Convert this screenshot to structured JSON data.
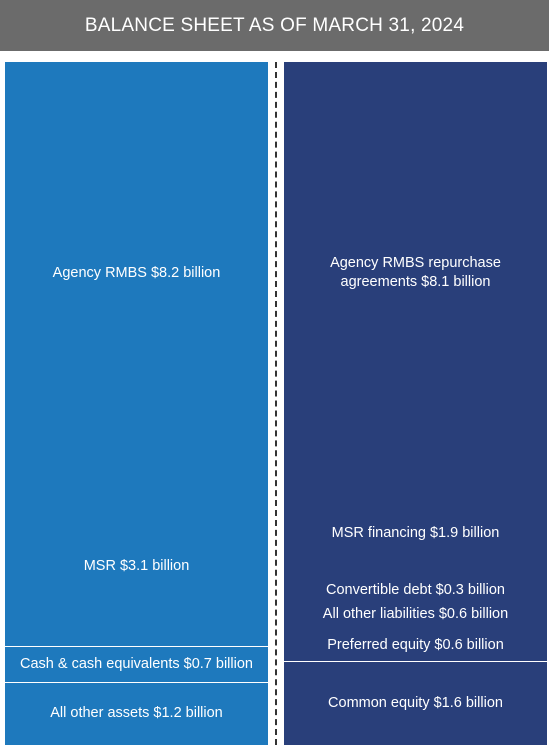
{
  "title": "BALANCE SHEET AS OF MARCH 31, 2024",
  "colors": {
    "header": "#6b6b6b",
    "assets": "#1e79bd",
    "liabilities": "#293f7a"
  },
  "chart_data": {
    "type": "stacked-bar",
    "title": "BALANCE SHEET AS OF MARCH 31, 2024",
    "unit": "billion",
    "columns": [
      {
        "name": "",
        "segments": [
          {
            "label": "Agency RMBS $8.2 billion",
            "value": 8.2
          },
          {
            "label": "MSR $3.1 billion",
            "value": 3.1
          },
          {
            "label": "Cash & cash equivalents $0.7 billion",
            "value": 0.7
          },
          {
            "label": "All other assets $1.2 billion",
            "value": 1.2
          }
        ]
      },
      {
        "name": "",
        "segments": [
          {
            "label": "Agency RMBS repurchase agreements $8.1 billion",
            "value": 8.1
          },
          {
            "label": "MSR financing $1.9 billion",
            "value": 1.9
          },
          {
            "label": "Convertible debt $0.3 billion",
            "value": 0.3
          },
          {
            "label": "All other liabilities $0.6 billion",
            "value": 0.6
          },
          {
            "label": "Preferred equity $0.6 billion",
            "value": 0.6
          },
          {
            "label": "Common equity $1.6 billion",
            "value": 1.6
          }
        ]
      }
    ]
  }
}
